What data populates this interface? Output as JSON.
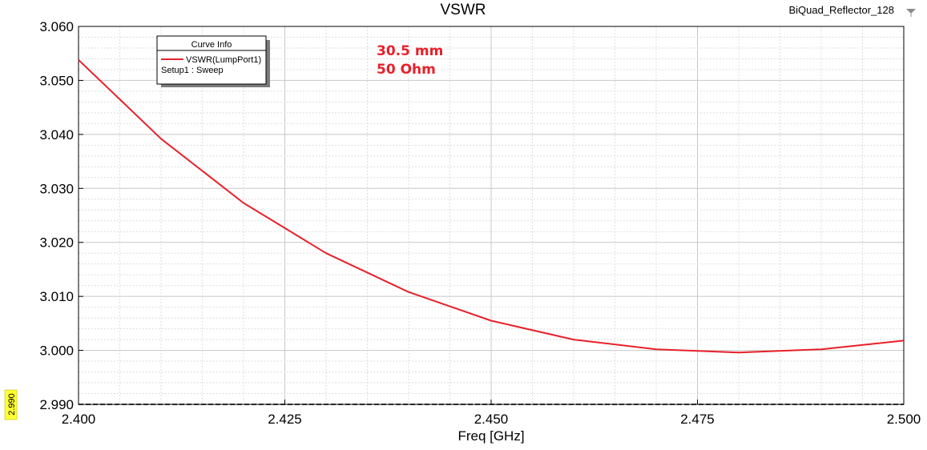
{
  "window": {
    "title": "VSWR",
    "project_name": "BiQuad_Reflector_128"
  },
  "legend": {
    "header": "Curve Info",
    "entries": [
      {
        "label": "VSWR(LumpPort1)",
        "sublabel": "Setup1 : Sweep",
        "color": "#e8202a"
      }
    ]
  },
  "annotations": [
    "30.5 mm",
    "50 Ohm"
  ],
  "marker_readout": "2.990",
  "chart_data": {
    "type": "line",
    "title": "VSWR",
    "xlabel": "Freq [GHz]",
    "ylabel": "",
    "xlim": [
      2.4,
      2.5
    ],
    "ylim": [
      2.99,
      3.06
    ],
    "xticks": [
      "2.400",
      "2.425",
      "2.450",
      "2.475",
      "2.500"
    ],
    "yticks": [
      "2.990",
      "3.000",
      "3.010",
      "3.020",
      "3.030",
      "3.040",
      "3.050",
      "3.060"
    ],
    "grid": true,
    "legend_position": "top-left",
    "series": [
      {
        "name": "VSWR(LumpPort1)",
        "color": "#e8202a",
        "x": [
          2.4,
          2.41,
          2.42,
          2.43,
          2.44,
          2.45,
          2.46,
          2.47,
          2.48,
          2.49,
          2.5
        ],
        "y": [
          3.0538,
          3.0392,
          3.0273,
          3.018,
          3.0108,
          3.0055,
          3.002,
          3.0002,
          2.9996,
          3.0002,
          3.0018
        ]
      }
    ]
  }
}
